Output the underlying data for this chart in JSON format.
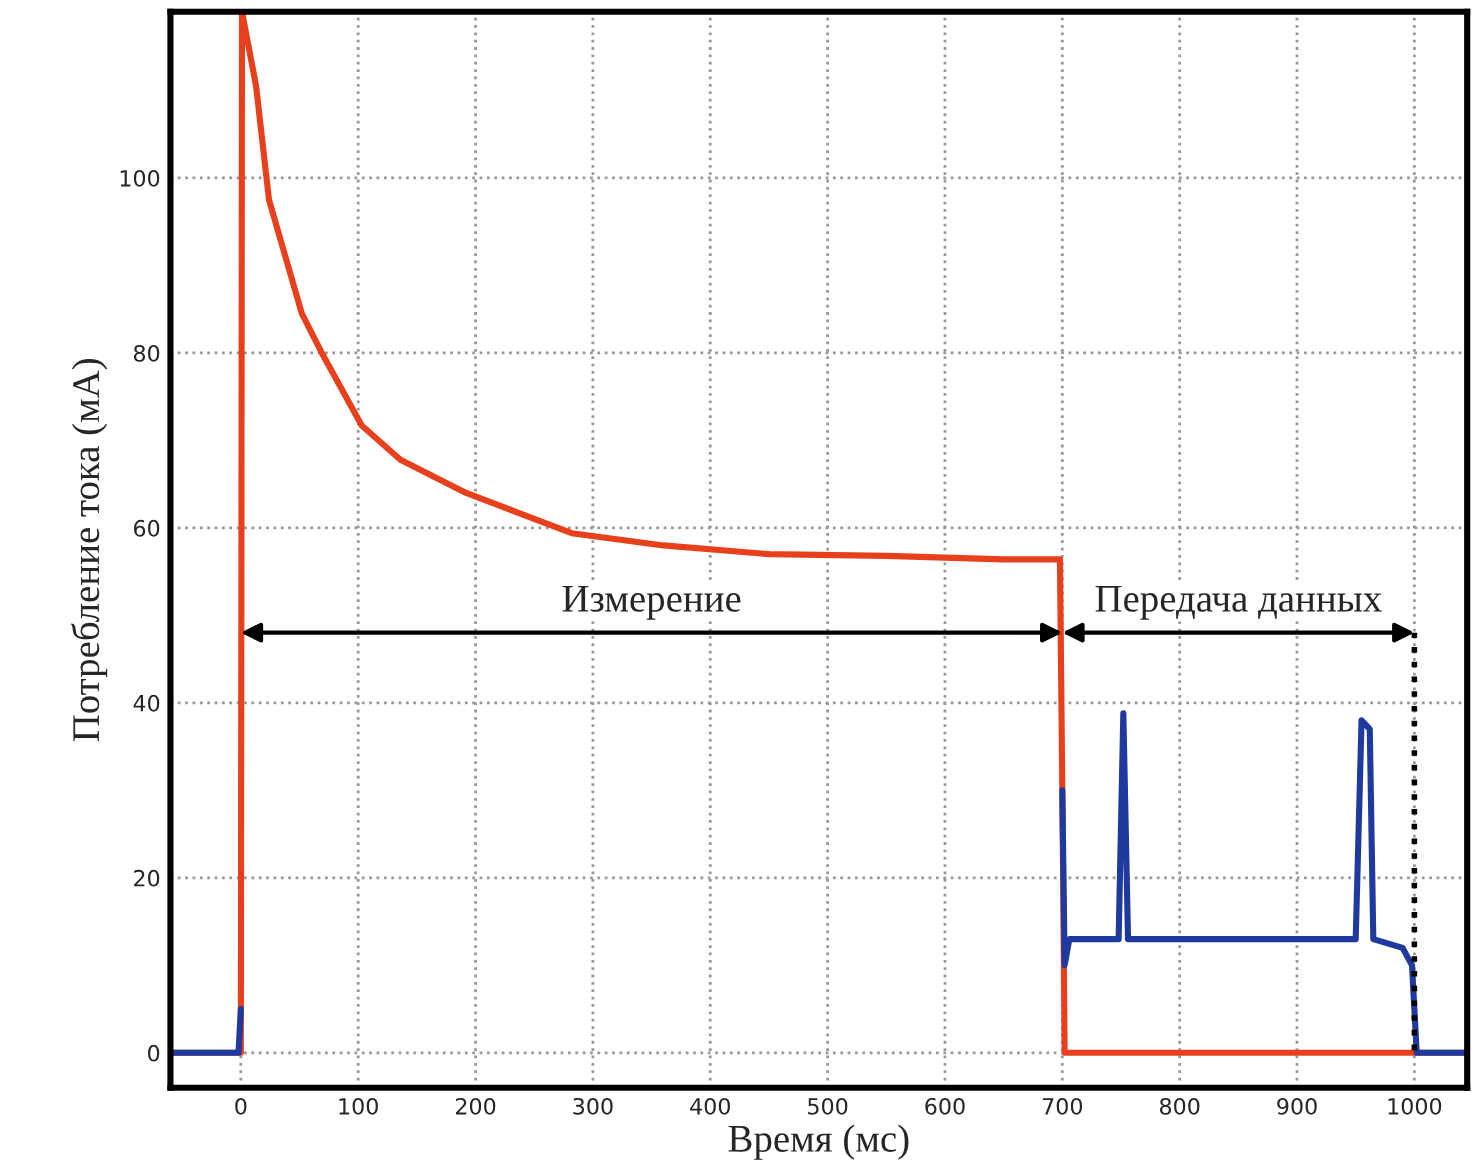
{
  "chart_data": {
    "type": "line",
    "xlabel": "Время (мс)",
    "ylabel": "Потребление тока (мА)",
    "xlim": [
      -60,
      1045
    ],
    "ylim": [
      -4,
      119
    ],
    "xticks": [
      0,
      100,
      200,
      300,
      400,
      500,
      600,
      700,
      800,
      900,
      1000
    ],
    "yticks": [
      0,
      20,
      40,
      60,
      80,
      100
    ],
    "grid": true,
    "line_style": "solid",
    "marker": "none",
    "series": [
      {
        "color": "#e8401c",
        "x": [
          -60,
          -2,
          0,
          1,
          13,
          24,
          52,
          69,
          103,
          136,
          192,
          282,
          360,
          450,
          550,
          650,
          698,
          700,
          702,
          800,
          900,
          1000,
          1045
        ],
        "values": [
          0,
          0,
          0,
          119,
          110.5,
          97.5,
          84.5,
          80,
          71.7,
          67.8,
          64,
          59.4,
          58,
          57,
          56.8,
          56.4,
          56.4,
          30,
          0,
          0,
          0,
          0,
          0
        ]
      },
      {
        "color": "#1f3a9e",
        "x": [
          -60,
          -2,
          0,
          1,
          700,
          702,
          706,
          748,
          752,
          756,
          950,
          955,
          962,
          965,
          990,
          998,
          1002,
          1045
        ],
        "values": [
          0,
          0,
          5,
          null,
          30,
          10,
          13,
          13,
          38.8,
          13,
          13,
          38,
          37,
          13,
          12,
          10,
          0,
          0
        ]
      }
    ],
    "ref_lines": [
      {
        "axis": "x",
        "value": 1000,
        "color": "#000000",
        "line_style": "dotted"
      }
    ],
    "annotations": [
      "Измерение",
      "Передача данных"
    ]
  }
}
